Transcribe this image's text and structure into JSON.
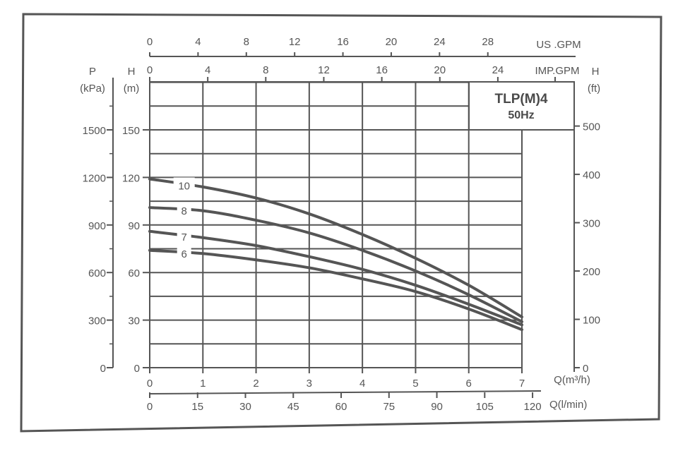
{
  "chart_data": {
    "type": "line",
    "title": "TLP(M)4",
    "subtitle": "50Hz",
    "x": [
      0,
      1,
      2,
      3,
      4,
      5,
      6,
      7
    ],
    "xlabel": "Q(m³/h)",
    "ylabel": "H (m)",
    "xlim": [
      0,
      7
    ],
    "ylim": [
      0,
      180
    ],
    "grid": true,
    "series": [
      {
        "name": "10",
        "values": [
          119,
          114,
          107,
          97,
          84,
          69,
          52,
          32
        ]
      },
      {
        "name": "8",
        "values": [
          101,
          99,
          93,
          85,
          74,
          61,
          46,
          29
        ]
      },
      {
        "name": "7",
        "values": [
          86,
          82,
          77,
          70,
          62,
          52,
          40,
          27
        ]
      },
      {
        "name": "6",
        "values": [
          74,
          72,
          68,
          63,
          56,
          48,
          37,
          24
        ]
      }
    ],
    "axes": {
      "left_pressure": {
        "label_line1": "P",
        "label_line2": "(kPa)",
        "ticks": [
          "0",
          "300",
          "600",
          "900",
          "1200",
          "1500"
        ],
        "values": [
          0,
          300,
          600,
          900,
          1200,
          1500
        ]
      },
      "left_head_m": {
        "label_line1": "H",
        "label_line2": "(m)",
        "ticks": [
          "0",
          "30",
          "60",
          "90",
          "120",
          "150"
        ],
        "values": [
          0,
          30,
          60,
          90,
          120,
          150
        ]
      },
      "right_head_ft": {
        "label_line1": "H",
        "label_line2": "(ft)",
        "ticks": [
          "0",
          "100",
          "200",
          "300",
          "400",
          "500"
        ],
        "values": [
          0,
          100,
          200,
          300,
          400,
          500
        ]
      },
      "bottom_m3h": {
        "label": "Q(m³/h)",
        "ticks": [
          "0",
          "1",
          "2",
          "3",
          "4",
          "5",
          "6",
          "7"
        ],
        "values": [
          0,
          1,
          2,
          3,
          4,
          5,
          6,
          7
        ]
      },
      "bottom_lmin": {
        "label": "Q(l/min)",
        "ticks": [
          "0",
          "15",
          "30",
          "45",
          "60",
          "75",
          "90",
          "105",
          "120"
        ],
        "values": [
          0,
          15,
          30,
          45,
          60,
          75,
          90,
          105,
          120
        ]
      },
      "top_us_gpm": {
        "label": "US .GPM",
        "ticks": [
          "0",
          "4",
          "8",
          "12",
          "16",
          "20",
          "24",
          "28"
        ],
        "values": [
          0,
          4,
          8,
          12,
          16,
          20,
          24,
          28
        ]
      },
      "top_imp_gpm": {
        "label": "IMP.GPM",
        "ticks": [
          "0",
          "4",
          "8",
          "12",
          "16",
          "20",
          "24"
        ],
        "values": [
          0,
          4,
          8,
          12,
          16,
          20,
          24
        ]
      }
    },
    "colors": {
      "ink": "#555555",
      "background": "#ffffff"
    }
  }
}
